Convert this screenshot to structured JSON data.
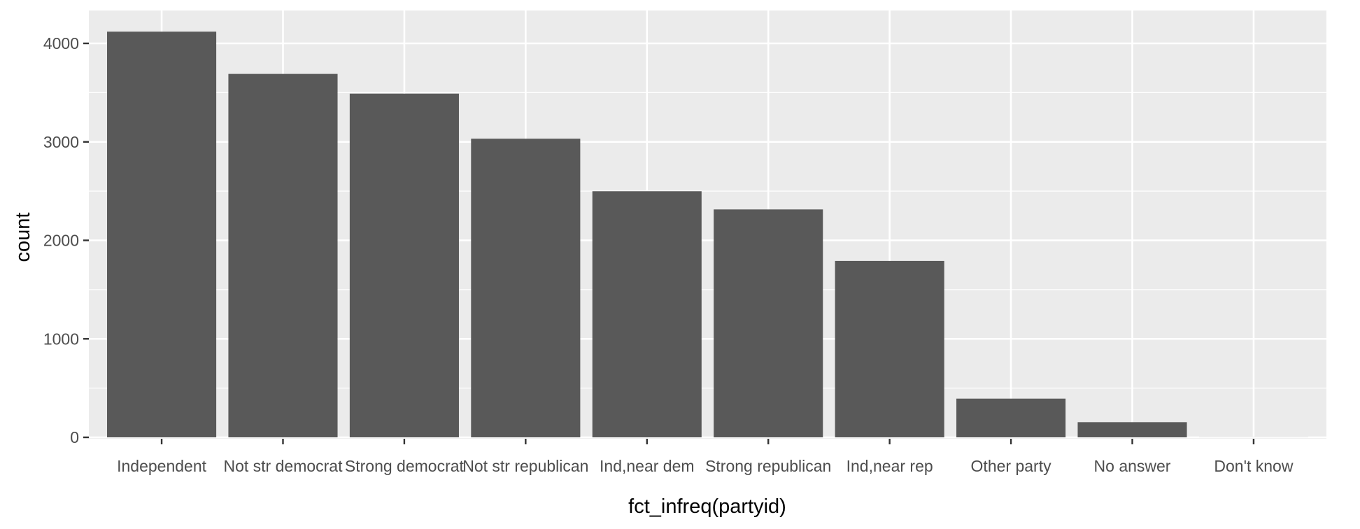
{
  "chart_data": {
    "type": "bar",
    "title": "",
    "xlabel": "fct_infreq(partyid)",
    "ylabel": "count",
    "categories": [
      "Independent",
      "Not str democrat",
      "Strong democrat",
      "Not str republican",
      "Ind,near dem",
      "Strong republican",
      "Ind,near rep",
      "Other party",
      "No answer",
      "Don't know"
    ],
    "values": [
      4119,
      3690,
      3490,
      3032,
      2499,
      2314,
      1791,
      393,
      154,
      1
    ],
    "ylim": [
      0,
      4300
    ],
    "yticks": [
      0,
      1000,
      2000,
      3000,
      4000
    ],
    "grid": true,
    "legend": "none"
  },
  "colors": {
    "panel_background": "#ebebeb",
    "grid_major": "#ffffff",
    "bar_fill": "#595959",
    "tick_mark": "#333333"
  }
}
